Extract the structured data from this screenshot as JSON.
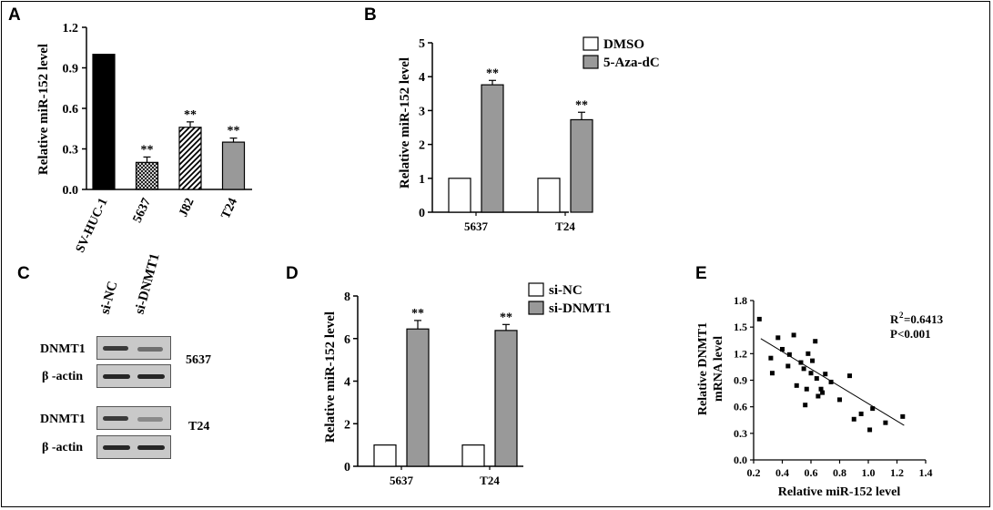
{
  "panels": {
    "A": {
      "letter": "A"
    },
    "B": {
      "letter": "B"
    },
    "C": {
      "letter": "C",
      "columns": [
        "si-NC",
        "si-DNMT1"
      ],
      "rows": [
        "DNMT1",
        "β -actin",
        "DNMT1",
        "β -actin"
      ],
      "groups": [
        "5637",
        "T24"
      ]
    },
    "D": {
      "letter": "D"
    },
    "E": {
      "letter": "E"
    }
  },
  "chart_data": [
    {
      "id": "A",
      "type": "bar",
      "ylabel": "Relative miR-152 level",
      "categories": [
        "SV-HUC-1",
        "5637",
        "J82",
        "T24"
      ],
      "values": [
        1.0,
        0.2,
        0.46,
        0.35
      ],
      "errors": [
        0,
        0.04,
        0.04,
        0.03
      ],
      "patterns": [
        "solid-black",
        "crosshatch",
        "diagonal",
        "solid-gray"
      ],
      "annotations": [
        "",
        "**",
        "**",
        "**"
      ],
      "ylim": [
        0,
        1.2
      ],
      "yticks": [
        "0.0",
        "0.3",
        "0.6",
        "0.9",
        "1.2"
      ]
    },
    {
      "id": "B",
      "type": "bar",
      "ylabel": "Relative miR-152 level",
      "categories": [
        "5637",
        "T24"
      ],
      "series": [
        {
          "name": "DMSO",
          "values": [
            1,
            1
          ],
          "errors": [
            0,
            0
          ],
          "color": "#ffffff"
        },
        {
          "name": "5-Aza-dC",
          "values": [
            3.76,
            2.73
          ],
          "errors": [
            0.13,
            0.22
          ],
          "color": "#999999"
        }
      ],
      "annotations": [
        "**",
        "**"
      ],
      "ylim": [
        0,
        5
      ],
      "yticks": [
        "0",
        "1",
        "2",
        "3",
        "4",
        "5"
      ],
      "legend": "top-right"
    },
    {
      "id": "D",
      "type": "bar",
      "ylabel": "Relative miR-152 level",
      "categories": [
        "5637",
        "T24"
      ],
      "series": [
        {
          "name": "si-NC",
          "values": [
            1,
            1
          ],
          "errors": [
            0,
            0
          ],
          "color": "#ffffff"
        },
        {
          "name": "si-DNMT1",
          "values": [
            6.45,
            6.38
          ],
          "errors": [
            0.4,
            0.28
          ],
          "color": "#999999"
        }
      ],
      "annotations": [
        "**",
        "**"
      ],
      "ylim": [
        0,
        8
      ],
      "yticks": [
        "0",
        "2",
        "4",
        "6",
        "8"
      ],
      "legend": "top-right"
    },
    {
      "id": "E",
      "type": "scatter",
      "xlabel": "Relative miR-152 level",
      "ylabel": [
        "Relative DNMT1",
        "mRNA level"
      ],
      "xlim": [
        0.2,
        1.4
      ],
      "ylim": [
        0.0,
        1.8
      ],
      "xticks": [
        "0.2",
        "0.4",
        "0.6",
        "0.8",
        "1.0",
        "1.2",
        "1.4"
      ],
      "yticks": [
        "0.0",
        "0.3",
        "0.6",
        "0.9",
        "1.2",
        "1.5",
        "1.8"
      ],
      "stats": {
        "r2_prefix": "R",
        "r2_sup": "2",
        "r2_value": "=0.6413",
        "p": "P<0.001"
      },
      "trendline": {
        "x0": 0.25,
        "y0": 1.37,
        "x1": 1.25,
        "y1": 0.39
      },
      "points": [
        [
          0.24,
          1.59
        ],
        [
          0.32,
          1.15
        ],
        [
          0.33,
          0.98
        ],
        [
          0.37,
          1.38
        ],
        [
          0.4,
          1.25
        ],
        [
          0.44,
          1.06
        ],
        [
          0.45,
          1.19
        ],
        [
          0.48,
          1.41
        ],
        [
          0.5,
          0.84
        ],
        [
          0.53,
          1.1
        ],
        [
          0.55,
          1.03
        ],
        [
          0.56,
          0.62
        ],
        [
          0.57,
          0.8
        ],
        [
          0.58,
          1.2
        ],
        [
          0.6,
          0.98
        ],
        [
          0.61,
          1.12
        ],
        [
          0.63,
          1.34
        ],
        [
          0.64,
          0.92
        ],
        [
          0.65,
          0.72
        ],
        [
          0.67,
          0.8
        ],
        [
          0.68,
          0.76
        ],
        [
          0.7,
          0.97
        ],
        [
          0.74,
          0.88
        ],
        [
          0.8,
          0.68
        ],
        [
          0.87,
          0.95
        ],
        [
          0.9,
          0.46
        ],
        [
          0.95,
          0.52
        ],
        [
          1.01,
          0.34
        ],
        [
          1.03,
          0.58
        ],
        [
          1.12,
          0.42
        ],
        [
          1.24,
          0.49
        ]
      ]
    }
  ]
}
